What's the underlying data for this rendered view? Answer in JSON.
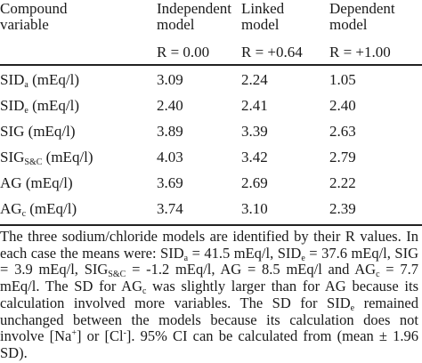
{
  "table": {
    "header": {
      "col0": [
        "Compound",
        "variable"
      ],
      "col1": [
        "Independent",
        "model"
      ],
      "col2": [
        "Linked",
        "model"
      ],
      "col3": [
        "Dependent",
        "model"
      ]
    },
    "r_values": [
      "R = 0.00",
      "R = +0.64",
      "R = +1.00"
    ],
    "rows": [
      {
        "base": "SID",
        "sub": "a",
        "unit": " (mEq/l)",
        "values": [
          "3.09",
          "2.24",
          "1.05"
        ]
      },
      {
        "base": "SID",
        "sub": "e",
        "unit": " (mEq/l)",
        "values": [
          "2.40",
          "2.41",
          "2.40"
        ]
      },
      {
        "base": "SIG",
        "sub": "",
        "unit": " (mEq/l)",
        "values": [
          "3.89",
          "3.39",
          "2.63"
        ]
      },
      {
        "base": "SIG",
        "sub": "S&C",
        "unit": " (mEq/l)",
        "values": [
          "4.03",
          "3.42",
          "2.79"
        ]
      },
      {
        "base": "AG",
        "sub": "",
        "unit": " (mEq/l)",
        "values": [
          "3.69",
          "2.69",
          "2.22"
        ]
      },
      {
        "base": "AG",
        "sub": "c",
        "unit": " (mEq/l)",
        "values": [
          "3.74",
          "3.10",
          "2.39"
        ]
      }
    ]
  },
  "footnote": {
    "s1": "The three sodium/chloride models are identified by their R values. In each case the means were: SID",
    "s1_sub": "a",
    "s2": " = 41.5 mEq/l, SID",
    "s2_sub": "e",
    "s3": " = 37.6 mEq/l, SIG = 3.9 mEq/l, SIG",
    "s3_sub": "S&C",
    "s4": " = -1.2 mEq/l, AG = 8.5 mEq/l and AG",
    "s4_sub": "c",
    "s5": " = 7.7 mEq/l. The SD for AG",
    "s5_sub": "c",
    "s6": " was slightly larger than for AG because its calculation involved more variables. The SD for SID",
    "s6_sub": "e",
    "s7": " remained unchanged between the models because its calculation does not involve [Na",
    "s7_sup": "+",
    "s8": "] or [Cl",
    "s8_sup": "-",
    "s9": "]. 95% CI can be calculated from (mean ± 1.96 SD)."
  }
}
